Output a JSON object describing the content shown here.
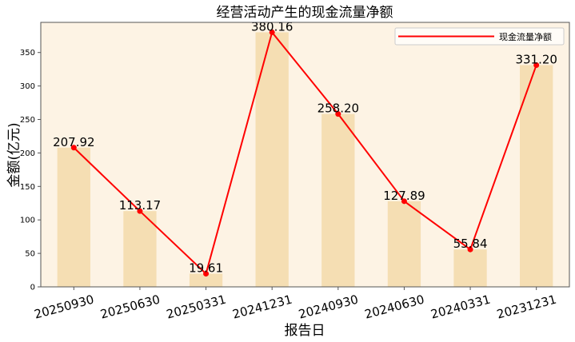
{
  "chart_data": {
    "type": "bar",
    "title": "经营活动产生的现金流量净额",
    "xlabel": "报告日",
    "ylabel": "金额(亿元)",
    "categories": [
      "20250930",
      "20250630",
      "20250331",
      "20241231",
      "20240930",
      "20240630",
      "20240331",
      "20231231"
    ],
    "series": [
      {
        "name": "现金流量净额",
        "values": [
          207.92,
          113.17,
          19.61,
          380.16,
          258.2,
          127.89,
          55.84,
          331.2
        ]
      }
    ],
    "value_labels": [
      "207.92",
      "113.17",
      "19.61",
      "380.16",
      "258.20",
      "127.89",
      "55.84",
      "331.20"
    ],
    "ylim": [
      0,
      395
    ],
    "yticks": [
      0,
      50,
      100,
      150,
      200,
      250,
      300,
      350
    ],
    "grid": false,
    "legend": "top-right",
    "overlay": "line-with-markers",
    "colors": {
      "plot_bg": "#fdf3e4",
      "bar": "#f5deb3",
      "line": "#ff0000",
      "axis": "#555555"
    }
  }
}
